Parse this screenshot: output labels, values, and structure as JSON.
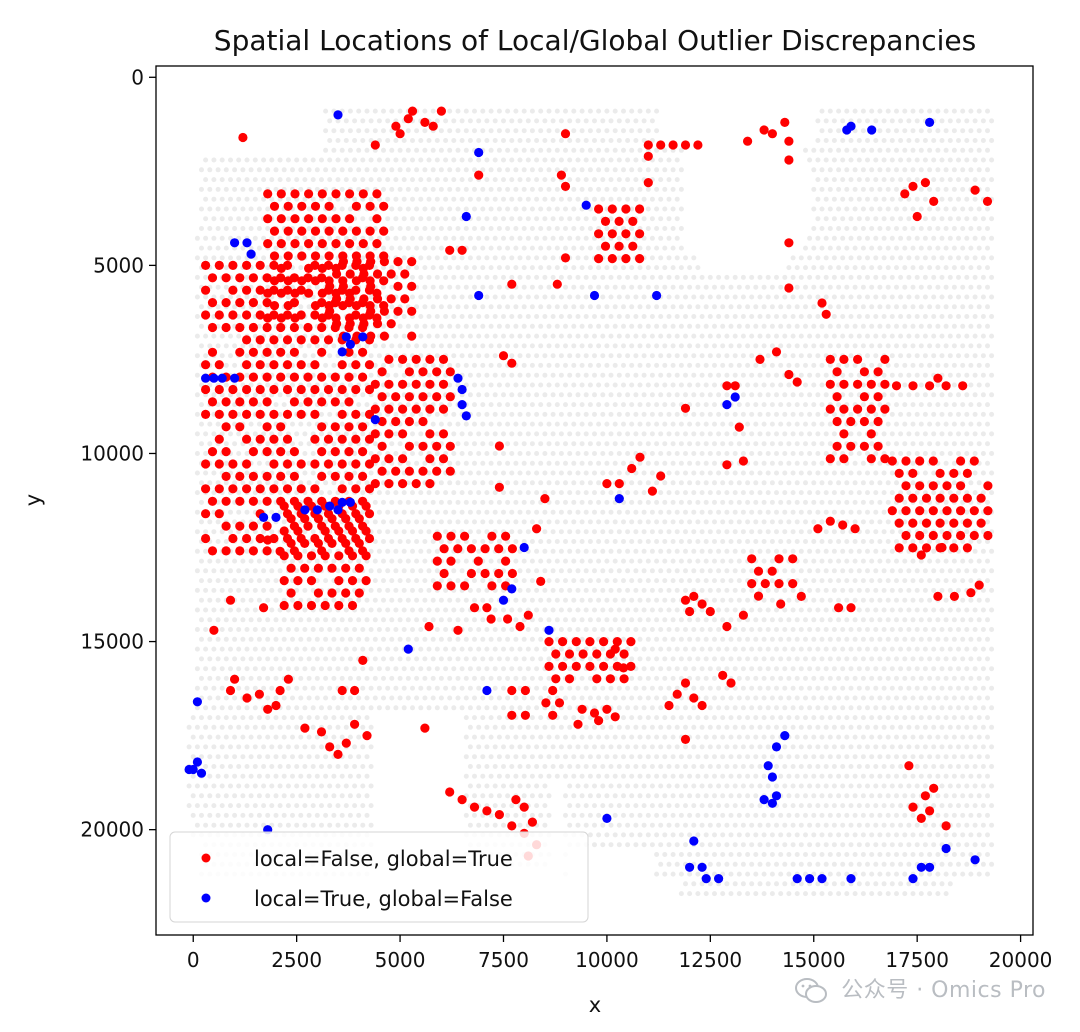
{
  "chart_data": {
    "type": "scatter",
    "title": "Spatial Locations of Local/Global Outlier Discrepancies",
    "xlabel": "x",
    "ylabel": "y",
    "xlim": [
      -900,
      20300
    ],
    "ylim": [
      22800,
      -300
    ],
    "y_inverted": true,
    "grid": false,
    "x_ticks": [
      0,
      2500,
      5000,
      7500,
      10000,
      12500,
      15000,
      17500,
      20000
    ],
    "x_tick_labels": [
      "0",
      "2500",
      "5000",
      "7500",
      "10000",
      "12500",
      "15000",
      "17500",
      "20000"
    ],
    "y_ticks": [
      0,
      5000,
      10000,
      15000,
      20000
    ],
    "y_tick_labels": [
      "0",
      "5000",
      "10000",
      "15000",
      "20000"
    ],
    "legend_position": "lower-left",
    "background_series": {
      "name": "all spots",
      "color": "#ebebeb"
    },
    "series": [
      {
        "name": "local=False, global=True",
        "color": "#ff0000",
        "clusters": [
          {
            "x0": 300,
            "x1": 4400,
            "y0": 5000,
            "y1": 12900
          },
          {
            "x0": 4400,
            "x1": 6300,
            "y0": 7500,
            "y1": 11000
          },
          {
            "x0": 1800,
            "x1": 4700,
            "y0": 3100,
            "y1": 6400
          },
          {
            "x0": 3300,
            "x1": 5400,
            "y0": 4900,
            "y1": 7200
          },
          {
            "x0": 2200,
            "x1": 4200,
            "y0": 11400,
            "y1": 14200
          },
          {
            "x0": 16900,
            "x1": 19300,
            "y0": 10200,
            "y1": 12800
          },
          {
            "x0": 15400,
            "x1": 16800,
            "y0": 7500,
            "y1": 10300
          },
          {
            "x0": 9800,
            "x1": 10900,
            "y0": 3500,
            "y1": 5000
          },
          {
            "x0": 5900,
            "x1": 7800,
            "y0": 12200,
            "y1": 13800
          },
          {
            "x0": 8600,
            "x1": 10700,
            "y0": 15000,
            "y1": 16200
          },
          {
            "x0": 7700,
            "x1": 9000,
            "y0": 16300,
            "y1": 17200
          },
          {
            "x0": 13500,
            "x1": 14600,
            "y0": 12800,
            "y1": 13900
          }
        ],
        "points": [
          [
            1200,
            1600
          ],
          [
            4400,
            1800
          ],
          [
            4900,
            1300
          ],
          [
            5000,
            1500
          ],
          [
            5200,
            1100
          ],
          [
            5600,
            1200
          ],
          [
            5800,
            1300
          ],
          [
            6000,
            900
          ],
          [
            5300,
            900
          ],
          [
            9000,
            1500
          ],
          [
            8900,
            2600
          ],
          [
            9000,
            2900
          ],
          [
            6900,
            2600
          ],
          [
            6200,
            4600
          ],
          [
            6500,
            4600
          ],
          [
            11000,
            1800
          ],
          [
            11300,
            1800
          ],
          [
            11600,
            1800
          ],
          [
            11900,
            1800
          ],
          [
            12200,
            1800
          ],
          [
            11000,
            2100
          ],
          [
            11000,
            2800
          ],
          [
            13400,
            1700
          ],
          [
            13800,
            1400
          ],
          [
            14000,
            1500
          ],
          [
            14300,
            1200
          ],
          [
            14400,
            1700
          ],
          [
            14400,
            2200
          ],
          [
            14400,
            4400
          ],
          [
            14400,
            5600
          ],
          [
            15200,
            6000
          ],
          [
            15300,
            6300
          ],
          [
            13700,
            7500
          ],
          [
            14100,
            7300
          ],
          [
            14400,
            7900
          ],
          [
            14600,
            8100
          ],
          [
            17200,
            3100
          ],
          [
            17400,
            2900
          ],
          [
            17700,
            2800
          ],
          [
            17900,
            3300
          ],
          [
            17500,
            3700
          ],
          [
            18900,
            3000
          ],
          [
            19200,
            3300
          ],
          [
            17000,
            8200
          ],
          [
            17400,
            8200
          ],
          [
            17800,
            8200
          ],
          [
            18200,
            8200
          ],
          [
            18600,
            8200
          ],
          [
            18000,
            8000
          ],
          [
            12900,
            8200
          ],
          [
            13100,
            8200
          ],
          [
            11900,
            8800
          ],
          [
            13200,
            9300
          ],
          [
            12900,
            10300
          ],
          [
            13300,
            10200
          ],
          [
            10000,
            10800
          ],
          [
            10300,
            10800
          ],
          [
            10600,
            10400
          ],
          [
            10800,
            10100
          ],
          [
            11100,
            11000
          ],
          [
            11300,
            10600
          ],
          [
            9000,
            4800
          ],
          [
            8800,
            5500
          ],
          [
            7700,
            5500
          ],
          [
            7500,
            7400
          ],
          [
            7700,
            7600
          ],
          [
            7400,
            9800
          ],
          [
            7400,
            10900
          ],
          [
            8500,
            11200
          ],
          [
            8300,
            12000
          ],
          [
            7200,
            14400
          ],
          [
            6800,
            14100
          ],
          [
            7100,
            14100
          ],
          [
            7600,
            14400
          ],
          [
            7900,
            14600
          ],
          [
            8100,
            14300
          ],
          [
            8400,
            13400
          ],
          [
            5700,
            14600
          ],
          [
            6400,
            14700
          ],
          [
            5600,
            17300
          ],
          [
            4100,
            15500
          ],
          [
            3600,
            16300
          ],
          [
            3900,
            16300
          ],
          [
            2100,
            16300
          ],
          [
            2300,
            16000
          ],
          [
            1800,
            16800
          ],
          [
            2000,
            16700
          ],
          [
            1300,
            16500
          ],
          [
            1600,
            16400
          ],
          [
            900,
            16300
          ],
          [
            1000,
            16000
          ],
          [
            2700,
            17300
          ],
          [
            3100,
            17400
          ],
          [
            3300,
            17800
          ],
          [
            3500,
            18000
          ],
          [
            3700,
            17700
          ],
          [
            3900,
            17200
          ],
          [
            4200,
            17500
          ],
          [
            500,
            14700
          ],
          [
            900,
            13900
          ],
          [
            1700,
            14100
          ],
          [
            1800,
            12300
          ],
          [
            2100,
            12600
          ],
          [
            6200,
            19000
          ],
          [
            6500,
            19200
          ],
          [
            6800,
            19400
          ],
          [
            7100,
            19500
          ],
          [
            7400,
            19600
          ],
          [
            7700,
            19900
          ],
          [
            8000,
            20100
          ],
          [
            8300,
            20400
          ],
          [
            8000,
            19400
          ],
          [
            7800,
            19200
          ],
          [
            8200,
            19800
          ],
          [
            8100,
            20700
          ],
          [
            12000,
            14200
          ],
          [
            12100,
            13800
          ],
          [
            12300,
            14000
          ],
          [
            12500,
            14200
          ],
          [
            11900,
            13900
          ],
          [
            13300,
            14300
          ],
          [
            12900,
            14600
          ],
          [
            11500,
            16700
          ],
          [
            11700,
            16400
          ],
          [
            11900,
            16100
          ],
          [
            12100,
            16500
          ],
          [
            12300,
            16700
          ],
          [
            11900,
            17600
          ],
          [
            12800,
            15900
          ],
          [
            13000,
            16100
          ],
          [
            14200,
            14000
          ],
          [
            14700,
            13800
          ],
          [
            15600,
            14100
          ],
          [
            15900,
            14100
          ],
          [
            15400,
            11800
          ],
          [
            15700,
            11900
          ],
          [
            16000,
            12000
          ],
          [
            15100,
            12000
          ],
          [
            17300,
            18300
          ],
          [
            17400,
            19400
          ],
          [
            17600,
            19700
          ],
          [
            17800,
            19500
          ],
          [
            17700,
            19100
          ],
          [
            17900,
            18900
          ],
          [
            18200,
            19900
          ],
          [
            18000,
            13800
          ],
          [
            18400,
            13800
          ],
          [
            18800,
            13700
          ],
          [
            19000,
            13500
          ],
          [
            17600,
            12700
          ],
          [
            18100,
            12500
          ],
          [
            9400,
            16800
          ],
          [
            9700,
            16900
          ],
          [
            10000,
            16800
          ],
          [
            10200,
            17000
          ],
          [
            9800,
            17100
          ],
          [
            9300,
            17200
          ],
          [
            10200,
            15200
          ],
          [
            10400,
            15700
          ]
        ]
      },
      {
        "name": "local=True, global=False",
        "color": "#0000ff",
        "points": [
          [
            3500,
            1000
          ],
          [
            15900,
            1300
          ],
          [
            15800,
            1400
          ],
          [
            16400,
            1400
          ],
          [
            17800,
            1200
          ],
          [
            6900,
            2000
          ],
          [
            9500,
            3400
          ],
          [
            6600,
            3700
          ],
          [
            1000,
            4400
          ],
          [
            1300,
            4400
          ],
          [
            1400,
            4700
          ],
          [
            6900,
            5800
          ],
          [
            9700,
            5800
          ],
          [
            11200,
            5800
          ],
          [
            3600,
            7300
          ],
          [
            3800,
            7100
          ],
          [
            3700,
            6900
          ],
          [
            4100,
            6900
          ],
          [
            300,
            8000
          ],
          [
            500,
            8000
          ],
          [
            700,
            8000
          ],
          [
            1000,
            8000
          ],
          [
            6400,
            8000
          ],
          [
            6500,
            8300
          ],
          [
            6500,
            8700
          ],
          [
            6600,
            9000
          ],
          [
            4400,
            9100
          ],
          [
            12900,
            8700
          ],
          [
            13100,
            8500
          ],
          [
            10300,
            11200
          ],
          [
            2700,
            11500
          ],
          [
            3000,
            11500
          ],
          [
            3300,
            11400
          ],
          [
            3600,
            11300
          ],
          [
            3500,
            11500
          ],
          [
            3800,
            11300
          ],
          [
            1700,
            11700
          ],
          [
            2000,
            11700
          ],
          [
            8000,
            12500
          ],
          [
            7500,
            13900
          ],
          [
            7700,
            13600
          ],
          [
            8600,
            14700
          ],
          [
            5200,
            15200
          ],
          [
            7100,
            16300
          ],
          [
            100,
            16600
          ],
          [
            14300,
            17500
          ],
          [
            14100,
            17800
          ],
          [
            13900,
            18300
          ],
          [
            14000,
            18600
          ],
          [
            13800,
            19200
          ],
          [
            14000,
            19300
          ],
          [
            14100,
            19100
          ],
          [
            -100,
            18400
          ],
          [
            0,
            18400
          ],
          [
            100,
            18200
          ],
          [
            200,
            18500
          ],
          [
            1800,
            20000
          ],
          [
            10000,
            19700
          ],
          [
            12100,
            20300
          ],
          [
            12000,
            21000
          ],
          [
            12300,
            21000
          ],
          [
            12400,
            21300
          ],
          [
            12700,
            21300
          ],
          [
            14600,
            21300
          ],
          [
            14900,
            21300
          ],
          [
            15200,
            21300
          ],
          [
            15900,
            21300
          ],
          [
            17400,
            21300
          ],
          [
            17600,
            21000
          ],
          [
            17800,
            21000
          ],
          [
            18200,
            20500
          ],
          [
            18900,
            20800
          ]
        ]
      }
    ]
  },
  "watermark": {
    "text": "公众号 · Omics Pro",
    "logo_icon": "wechat-logo-icon"
  }
}
